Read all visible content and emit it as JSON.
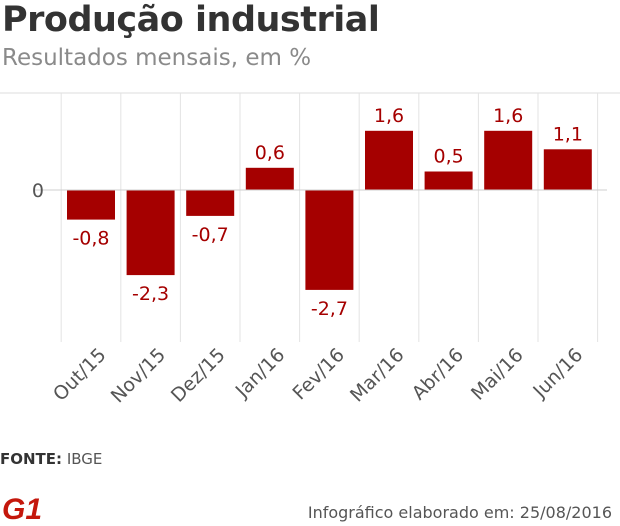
{
  "header": {
    "title": "Produção industrial",
    "subtitle": "Resultados mensais, em %"
  },
  "chart_data": {
    "type": "bar",
    "title": "Produção industrial",
    "subtitle": "Resultados mensais, em %",
    "categories": [
      "Out/15",
      "Nov/15",
      "Dez/15",
      "Jan/16",
      "Fev/16",
      "Mar/16",
      "Abr/16",
      "Mai/16",
      "Jun/16"
    ],
    "values": [
      -0.8,
      -2.3,
      -0.7,
      0.6,
      -2.7,
      1.6,
      0.5,
      1.6,
      1.1
    ],
    "value_labels": [
      "-0,8",
      "-2,3",
      "-0,7",
      "0,6",
      "-2,7",
      "1,6",
      "0,5",
      "1,6",
      "1,1"
    ],
    "y_tick_labels": [
      "0"
    ],
    "y_ticks": [
      0
    ],
    "ylim": [
      -4,
      2.5
    ],
    "xlabel": "",
    "ylabel": "",
    "grid": true,
    "bar_color": "#a50000",
    "label_color": "#a50000"
  },
  "footer": {
    "source_label": "FONTE:",
    "source_value": "IBGE",
    "logo_text": "G1",
    "credit": "Infográfico elaborado em: 25/08/2016"
  },
  "colors": {
    "bar": "#a50000",
    "logo": "#c4170c",
    "grid": "#e3e3e3"
  }
}
